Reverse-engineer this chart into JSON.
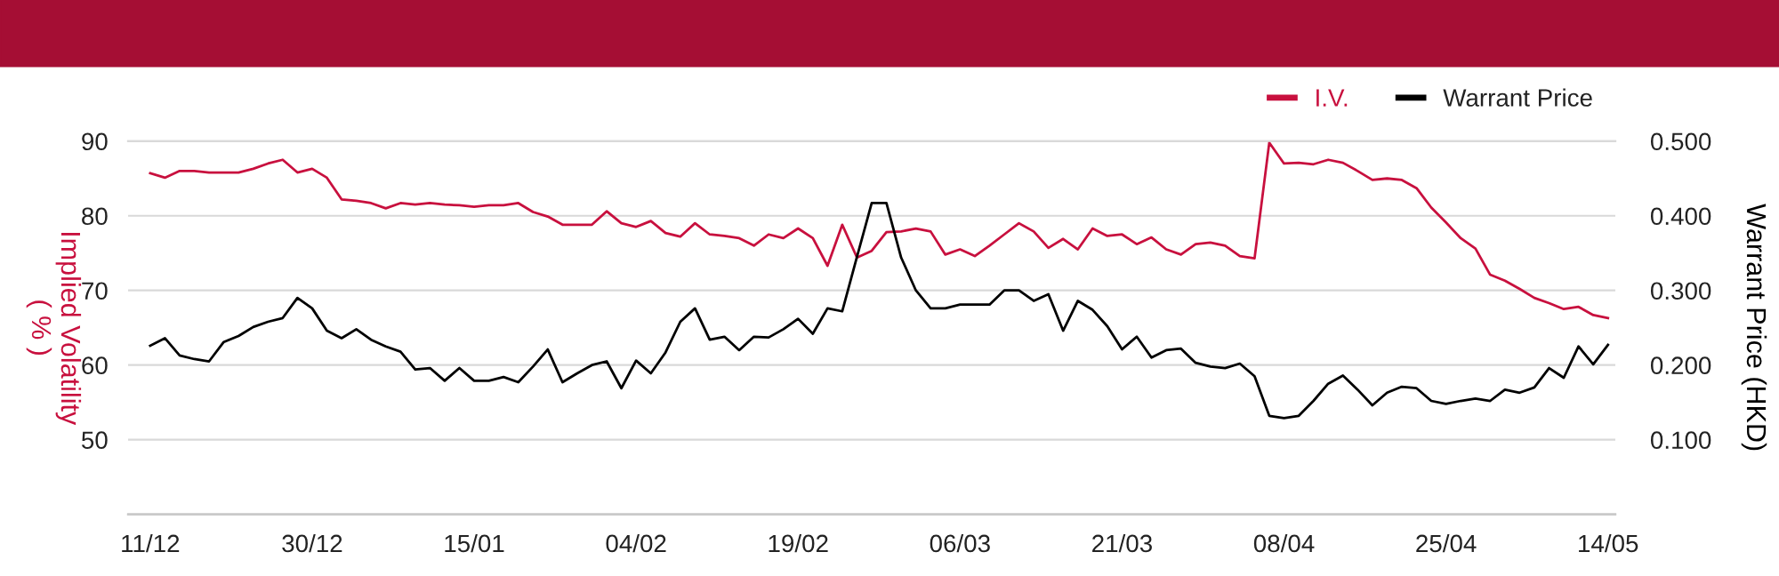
{
  "chart_data": {
    "type": "line",
    "categories": [
      "11/12",
      null,
      null,
      null,
      null,
      null,
      null,
      null,
      null,
      null,
      null,
      "30/12",
      null,
      null,
      null,
      null,
      null,
      null,
      null,
      null,
      null,
      null,
      "15/01",
      null,
      null,
      null,
      null,
      null,
      null,
      null,
      null,
      null,
      null,
      "04/02",
      null,
      null,
      null,
      null,
      null,
      null,
      null,
      null,
      null,
      null,
      "19/02",
      null,
      null,
      null,
      null,
      null,
      null,
      null,
      null,
      null,
      null,
      "06/03",
      null,
      null,
      null,
      null,
      null,
      null,
      null,
      null,
      null,
      null,
      "21/03",
      null,
      null,
      null,
      null,
      null,
      null,
      null,
      null,
      null,
      null,
      "08/04",
      null,
      null,
      null,
      null,
      null,
      null,
      null,
      null,
      null,
      null,
      "25/04",
      null,
      null,
      null,
      null,
      null,
      null,
      null,
      null,
      null,
      null,
      "14/05"
    ],
    "series": [
      {
        "name": "I.V.",
        "color": "#c8103e",
        "values": [
          85.7,
          85.1,
          86.0,
          86.0,
          85.8,
          85.8,
          85.8,
          86.3,
          87.0,
          87.5,
          85.8,
          86.3,
          85.1,
          82.2,
          82.0,
          81.7,
          81.0,
          81.7,
          81.5,
          81.7,
          81.5,
          81.4,
          81.2,
          81.4,
          81.4,
          81.7,
          80.5,
          79.9,
          78.8,
          78.8,
          78.8,
          80.6,
          79.0,
          78.5,
          79.3,
          77.7,
          77.2,
          79.0,
          77.5,
          77.3,
          77.0,
          76.0,
          77.5,
          77.0,
          78.3,
          77.0,
          73.3,
          78.8,
          74.4,
          75.3,
          77.8,
          77.9,
          78.3,
          77.9,
          74.8,
          75.5,
          74.6,
          76.0,
          77.5,
          79.0,
          77.9,
          75.7,
          76.9,
          75.5,
          78.3,
          77.3,
          77.5,
          76.2,
          77.1,
          75.5,
          74.8,
          76.2,
          76.4,
          76.0,
          74.6,
          74.3,
          89.8,
          87.0,
          87.1,
          86.9,
          87.5,
          87.1,
          86.0,
          84.8,
          85.0,
          84.8,
          83.7,
          81.1,
          79.1,
          77.0,
          75.6,
          72.1,
          71.3,
          70.2,
          69.0,
          68.3,
          67.5,
          67.8,
          66.7,
          66.3
        ]
      },
      {
        "name": "Warrant Price",
        "color": "#000000",
        "axis": "y2",
        "values": [
          0.226,
          0.236,
          0.213,
          0.208,
          0.205,
          0.231,
          0.239,
          0.251,
          0.258,
          0.263,
          0.29,
          0.276,
          0.246,
          0.236,
          0.248,
          0.234,
          0.225,
          0.218,
          0.194,
          0.196,
          0.179,
          0.196,
          0.179,
          0.179,
          0.184,
          0.177,
          0.198,
          0.221,
          0.177,
          0.189,
          0.2,
          0.205,
          0.169,
          0.206,
          0.189,
          0.217,
          0.258,
          0.276,
          0.234,
          0.238,
          0.22,
          0.238,
          0.237,
          0.248,
          0.262,
          0.242,
          0.276,
          0.272,
          0.345,
          0.417,
          0.417,
          0.344,
          0.3,
          0.276,
          0.276,
          0.281,
          0.281,
          0.281,
          0.3,
          0.3,
          0.286,
          0.295,
          0.246,
          0.286,
          0.274,
          0.252,
          0.221,
          0.238,
          0.21,
          0.22,
          0.222,
          0.203,
          0.198,
          0.196,
          0.202,
          0.185,
          0.132,
          0.129,
          0.132,
          0.152,
          0.175,
          0.186,
          0.167,
          0.146,
          0.163,
          0.171,
          0.169,
          0.152,
          0.148,
          0.152,
          0.155,
          0.152,
          0.167,
          0.163,
          0.17,
          0.196,
          0.183,
          0.225,
          0.201,
          0.227
        ]
      }
    ],
    "ylabel": "Implied Volatility\n( % )",
    "y2label": "Warrant Price (HKD)",
    "ylim": [
      40,
      90
    ],
    "yticks": [
      50,
      60,
      70,
      80,
      90
    ],
    "y2lim": [
      0,
      0.5
    ],
    "y2ticks": [
      {
        "value": 0.1,
        "label": "0.100"
      },
      {
        "value": 0.2,
        "label": "0.200"
      },
      {
        "value": 0.3,
        "label": "0.300"
      },
      {
        "value": 0.4,
        "label": "0.400"
      },
      {
        "value": 0.5,
        "label": "0.500"
      }
    ],
    "grid": "y",
    "legend": "top right",
    "marker": "none",
    "line_style": "solid"
  }
}
